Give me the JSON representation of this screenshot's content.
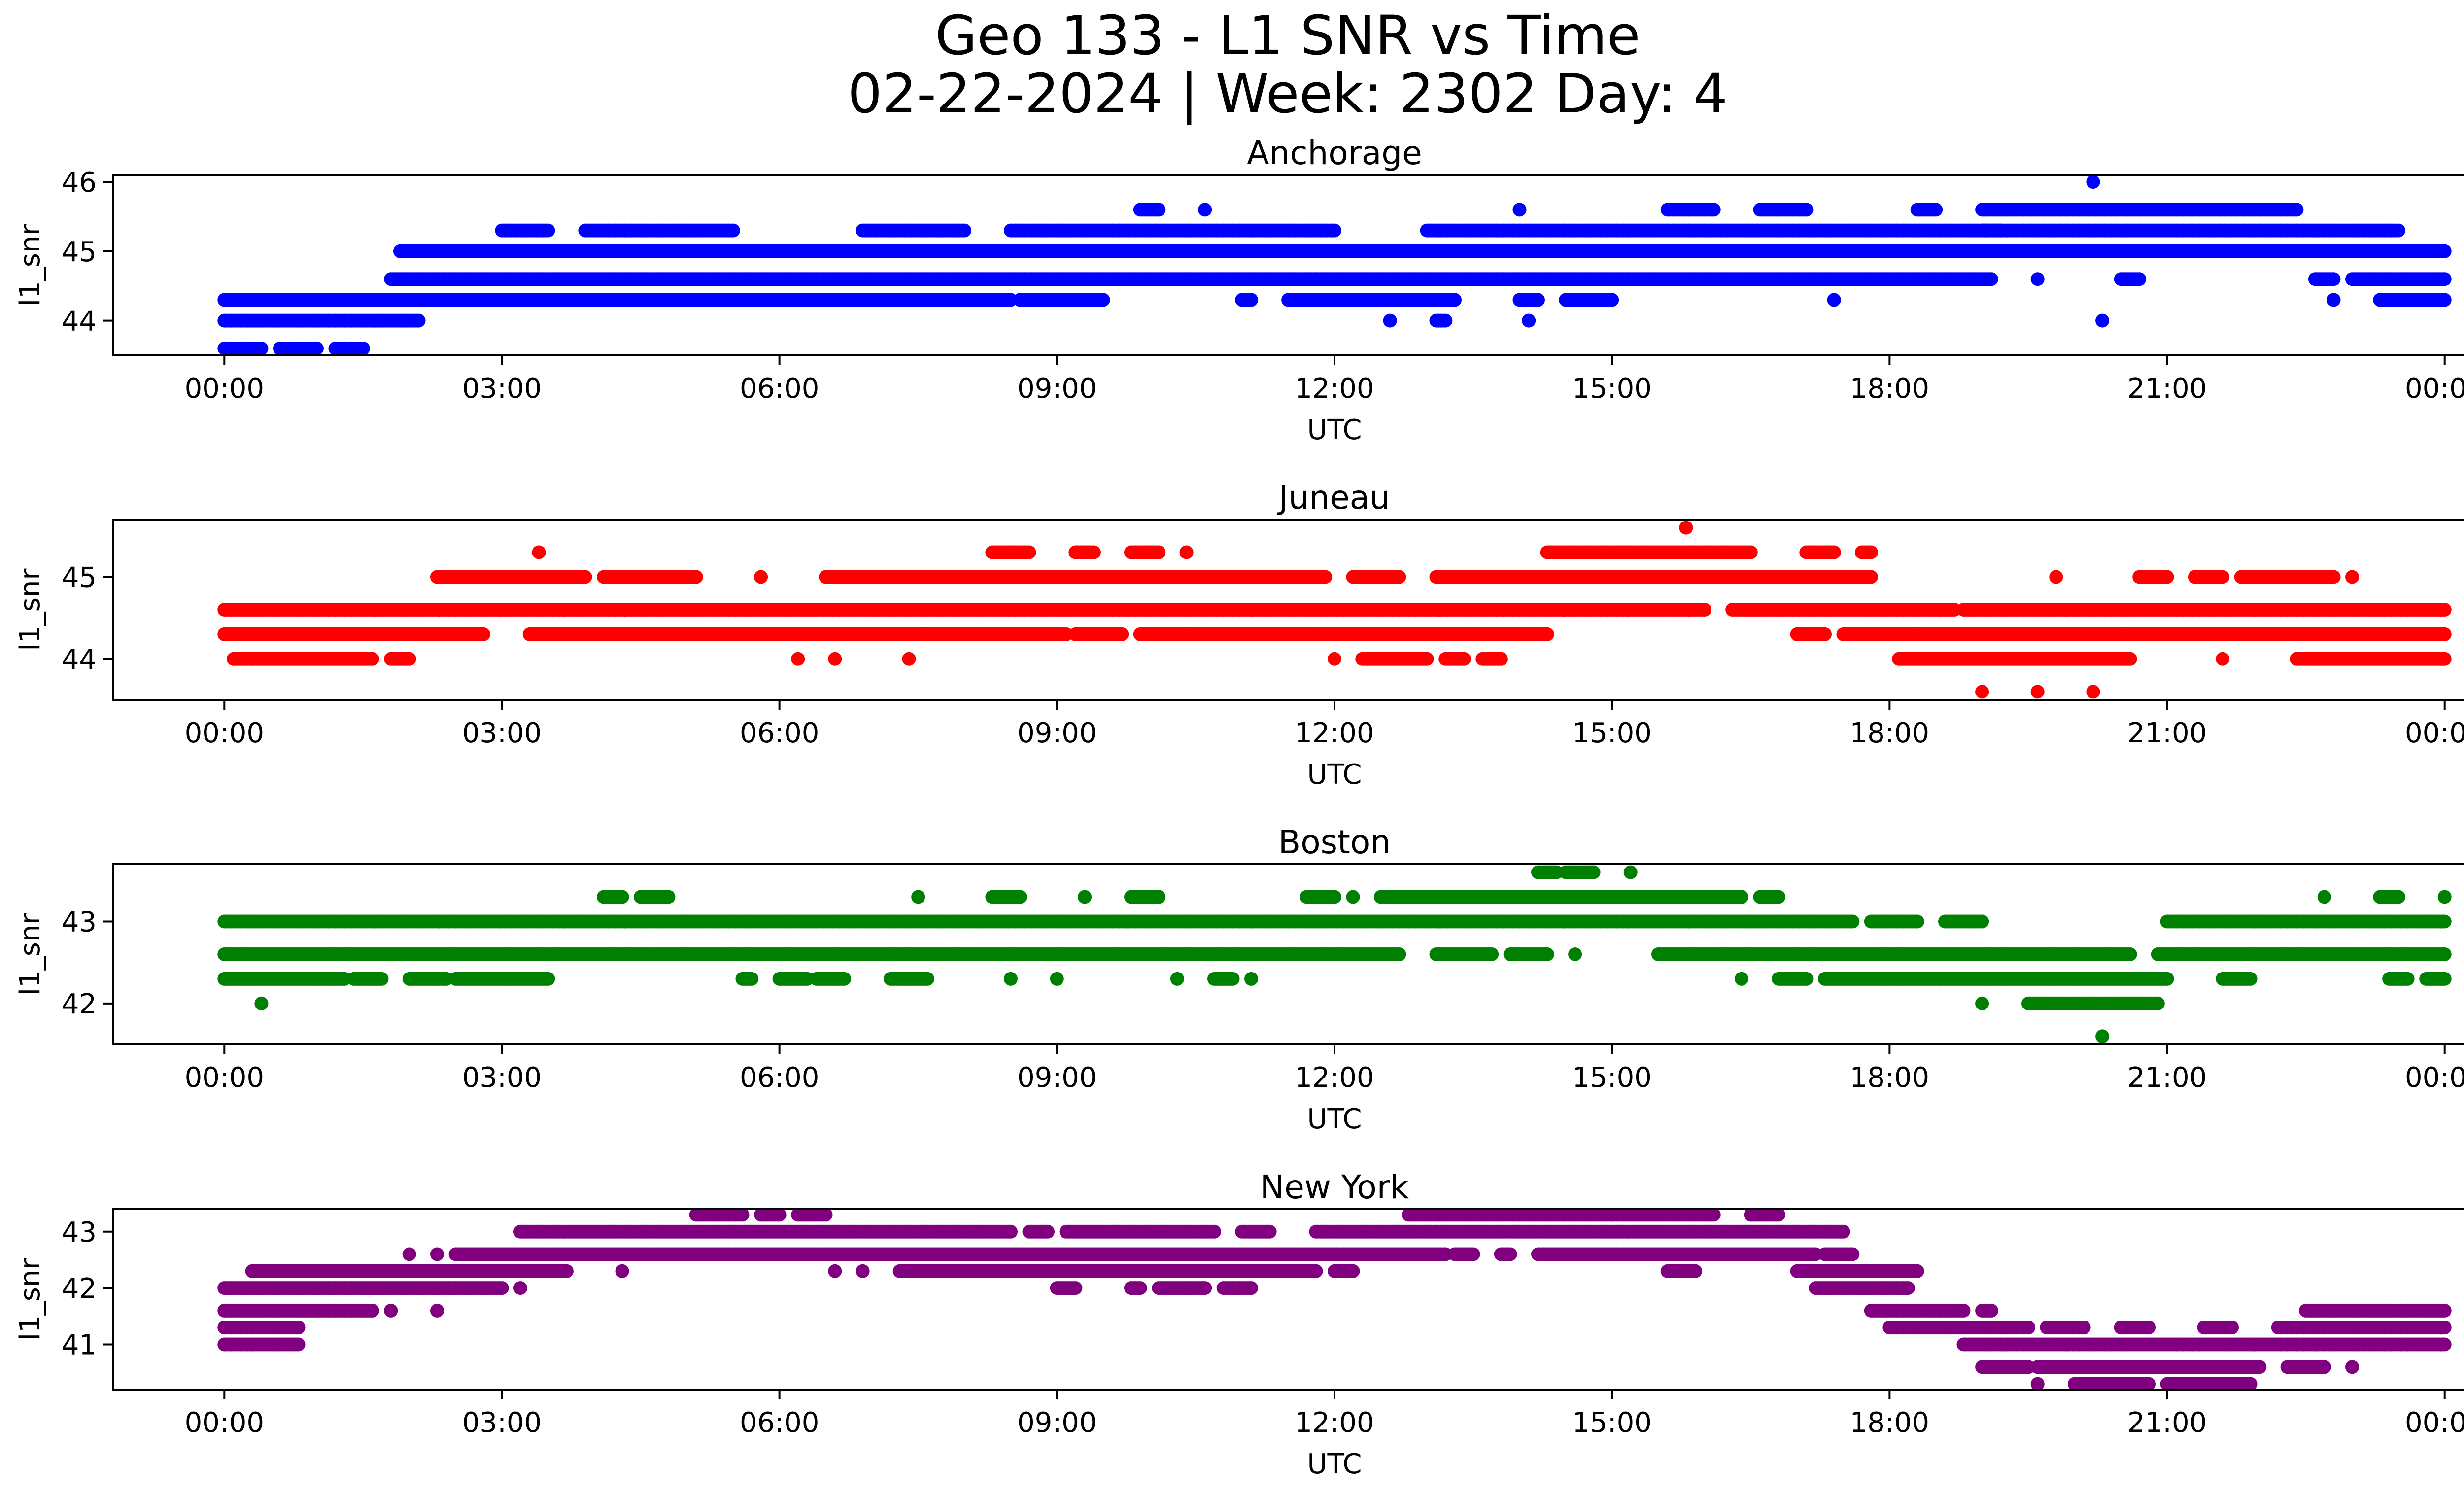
{
  "chart": {
    "title_line1": "Geo 133 - L1 SNR vs Time",
    "title_line2": "02-22-2024 | Week: 2302 Day: 4"
  },
  "chart_data": [
    {
      "type": "scatter",
      "title": "Anchorage",
      "xlabel": "UTC",
      "ylabel": "l1_snr",
      "color": "#0000ff",
      "x_ticks": [
        "00:00",
        "03:00",
        "06:00",
        "09:00",
        "12:00",
        "15:00",
        "18:00",
        "21:00",
        "00:00"
      ],
      "xlim_hours": [
        -1.2,
        25.2
      ],
      "y_ticks": [
        44,
        45,
        46
      ],
      "ylim": [
        43.5,
        46.1
      ],
      "levels": [
        {
          "y": 43.6,
          "spans": [
            [
              0.0,
              0.4
            ],
            [
              0.6,
              1.0
            ],
            [
              1.2,
              1.5
            ]
          ]
        },
        {
          "y": 44.0,
          "spans": [
            [
              0.0,
              2.1
            ],
            [
              12.6,
              12.6
            ],
            [
              13.1,
              13.2
            ],
            [
              14.1,
              14.1
            ],
            [
              20.3,
              20.3
            ]
          ]
        },
        {
          "y": 44.3,
          "spans": [
            [
              0.0,
              2.5
            ],
            [
              2.5,
              4.0
            ],
            [
              4.0,
              8.5
            ],
            [
              8.6,
              9.5
            ],
            [
              11.0,
              11.1
            ],
            [
              11.5,
              13.3
            ],
            [
              14.0,
              14.2
            ],
            [
              14.5,
              15.0
            ],
            [
              17.4,
              17.4
            ],
            [
              22.8,
              22.8
            ],
            [
              23.3,
              24.0
            ]
          ]
        },
        {
          "y": 44.6,
          "spans": [
            [
              1.8,
              19.1
            ],
            [
              19.6,
              19.6
            ],
            [
              20.5,
              20.7
            ],
            [
              22.6,
              22.8
            ],
            [
              23.0,
              24.0
            ]
          ]
        },
        {
          "y": 45.0,
          "spans": [
            [
              1.9,
              24.0
            ]
          ]
        },
        {
          "y": 45.3,
          "spans": [
            [
              3.0,
              3.5
            ],
            [
              3.9,
              5.5
            ],
            [
              6.9,
              8.0
            ],
            [
              8.5,
              12.0
            ],
            [
              13.0,
              19.2
            ],
            [
              19.0,
              23.5
            ]
          ]
        },
        {
          "y": 45.6,
          "spans": [
            [
              9.9,
              10.1
            ],
            [
              10.6,
              10.6
            ],
            [
              14.0,
              14.0
            ],
            [
              15.6,
              16.1
            ],
            [
              16.6,
              17.1
            ],
            [
              18.3,
              18.5
            ],
            [
              19.0,
              22.4
            ]
          ]
        },
        {
          "y": 46.0,
          "spans": [
            [
              20.2,
              20.2
            ]
          ]
        }
      ]
    },
    {
      "type": "scatter",
      "title": "Juneau",
      "xlabel": "UTC",
      "ylabel": "l1_snr",
      "color": "#ff0000",
      "x_ticks": [
        "00:00",
        "03:00",
        "06:00",
        "09:00",
        "12:00",
        "15:00",
        "18:00",
        "21:00",
        "00:00"
      ],
      "xlim_hours": [
        -1.2,
        25.2
      ],
      "y_ticks": [
        44,
        45
      ],
      "ylim": [
        43.5,
        45.7
      ],
      "levels": [
        {
          "y": 43.6,
          "spans": [
            [
              19.0,
              19.0
            ],
            [
              19.6,
              19.6
            ],
            [
              20.2,
              20.2
            ]
          ]
        },
        {
          "y": 44.0,
          "spans": [
            [
              0.1,
              1.6
            ],
            [
              1.8,
              2.0
            ],
            [
              6.2,
              6.2
            ],
            [
              6.6,
              6.6
            ],
            [
              7.4,
              7.4
            ],
            [
              12.0,
              12.0
            ],
            [
              12.3,
              13.0
            ],
            [
              13.2,
              13.4
            ],
            [
              13.6,
              13.8
            ],
            [
              18.1,
              20.6
            ],
            [
              21.6,
              21.6
            ],
            [
              22.4,
              24.0
            ]
          ]
        },
        {
          "y": 44.3,
          "spans": [
            [
              0.0,
              2.8
            ],
            [
              3.3,
              9.1
            ],
            [
              9.2,
              9.7
            ],
            [
              9.9,
              14.3
            ],
            [
              17.0,
              17.3
            ],
            [
              17.5,
              24.0
            ]
          ]
        },
        {
          "y": 44.6,
          "spans": [
            [
              0.0,
              16.0
            ],
            [
              16.3,
              18.7
            ],
            [
              18.8,
              24.0
            ]
          ]
        },
        {
          "y": 45.0,
          "spans": [
            [
              2.3,
              3.9
            ],
            [
              4.1,
              5.1
            ],
            [
              5.8,
              5.8
            ],
            [
              6.5,
              11.9
            ],
            [
              12.2,
              12.7
            ],
            [
              13.1,
              17.8
            ],
            [
              19.8,
              19.8
            ],
            [
              20.7,
              21.0
            ],
            [
              21.3,
              21.6
            ],
            [
              21.8,
              22.8
            ],
            [
              23.0,
              23.0
            ]
          ]
        },
        {
          "y": 45.3,
          "spans": [
            [
              3.4,
              3.4
            ],
            [
              8.3,
              8.7
            ],
            [
              9.2,
              9.4
            ],
            [
              9.8,
              10.1
            ],
            [
              10.4,
              10.4
            ],
            [
              14.3,
              16.5
            ],
            [
              17.1,
              17.4
            ],
            [
              17.7,
              17.8
            ]
          ]
        },
        {
          "y": 45.6,
          "spans": [
            [
              15.8,
              15.8
            ]
          ]
        }
      ]
    },
    {
      "type": "scatter",
      "title": "Boston",
      "xlabel": "UTC",
      "ylabel": "l1_snr",
      "color": "#008000",
      "x_ticks": [
        "00:00",
        "03:00",
        "06:00",
        "09:00",
        "12:00",
        "15:00",
        "18:00",
        "21:00",
        "00:00"
      ],
      "xlim_hours": [
        -1.2,
        25.2
      ],
      "y_ticks": [
        42,
        43
      ],
      "ylim": [
        41.5,
        43.7
      ],
      "levels": [
        {
          "y": 41.6,
          "spans": [
            [
              20.3,
              20.3
            ]
          ]
        },
        {
          "y": 42.0,
          "spans": [
            [
              0.4,
              0.4
            ],
            [
              19.0,
              19.0
            ],
            [
              19.5,
              20.9
            ]
          ]
        },
        {
          "y": 42.3,
          "spans": [
            [
              0.0,
              1.3
            ],
            [
              1.4,
              1.7
            ],
            [
              2.0,
              2.4
            ],
            [
              2.5,
              3.5
            ],
            [
              5.6,
              5.7
            ],
            [
              6.0,
              6.3
            ],
            [
              6.4,
              6.7
            ],
            [
              7.2,
              7.6
            ],
            [
              8.5,
              8.5
            ],
            [
              9.0,
              9.0
            ],
            [
              10.3,
              10.3
            ],
            [
              10.7,
              10.9
            ],
            [
              11.1,
              11.1
            ],
            [
              16.4,
              16.4
            ],
            [
              16.8,
              17.1
            ],
            [
              17.3,
              21.0
            ],
            [
              21.6,
              21.9
            ],
            [
              23.4,
              23.6
            ],
            [
              23.8,
              24.0
            ]
          ]
        },
        {
          "y": 42.6,
          "spans": [
            [
              0.0,
              12.7
            ],
            [
              13.1,
              13.7
            ],
            [
              13.9,
              14.3
            ],
            [
              14.6,
              14.6
            ],
            [
              15.5,
              20.6
            ],
            [
              20.9,
              24.0
            ]
          ]
        },
        {
          "y": 43.0,
          "spans": [
            [
              0.0,
              17.6
            ],
            [
              17.8,
              18.3
            ],
            [
              18.6,
              19.0
            ],
            [
              21.0,
              24.0
            ]
          ]
        },
        {
          "y": 43.3,
          "spans": [
            [
              4.1,
              4.3
            ],
            [
              4.5,
              4.8
            ],
            [
              7.5,
              7.5
            ],
            [
              8.3,
              8.6
            ],
            [
              9.3,
              9.3
            ],
            [
              9.8,
              10.1
            ],
            [
              11.7,
              12.0
            ],
            [
              12.2,
              12.2
            ],
            [
              12.5,
              16.4
            ],
            [
              16.6,
              16.8
            ],
            [
              22.7,
              22.7
            ],
            [
              23.3,
              23.5
            ],
            [
              24.0,
              24.0
            ]
          ]
        },
        {
          "y": 43.6,
          "spans": [
            [
              14.2,
              14.4
            ],
            [
              14.5,
              14.8
            ],
            [
              15.2,
              15.2
            ]
          ]
        }
      ]
    },
    {
      "type": "scatter",
      "title": "New York",
      "xlabel": "UTC",
      "ylabel": "l1_snr",
      "color": "#800080",
      "x_ticks": [
        "00:00",
        "03:00",
        "06:00",
        "09:00",
        "12:00",
        "15:00",
        "18:00",
        "21:00",
        "00:00"
      ],
      "xlim_hours": [
        -1.2,
        25.2
      ],
      "y_ticks": [
        41,
        42,
        43
      ],
      "ylim": [
        40.2,
        43.4
      ],
      "levels": [
        {
          "y": 40.3,
          "spans": [
            [
              19.6,
              19.6
            ],
            [
              20.0,
              20.8
            ],
            [
              21.0,
              21.9
            ]
          ]
        },
        {
          "y": 40.6,
          "spans": [
            [
              19.0,
              19.5
            ],
            [
              19.6,
              22.0
            ],
            [
              22.3,
              22.7
            ],
            [
              23.0,
              23.0
            ]
          ]
        },
        {
          "y": 41.0,
          "spans": [
            [
              0.0,
              0.8
            ],
            [
              18.8,
              24.0
            ]
          ]
        },
        {
          "y": 41.3,
          "spans": [
            [
              0.0,
              0.8
            ],
            [
              18.0,
              19.5
            ],
            [
              19.7,
              20.1
            ],
            [
              20.5,
              20.8
            ],
            [
              21.4,
              21.7
            ],
            [
              22.2,
              24.0
            ]
          ]
        },
        {
          "y": 41.6,
          "spans": [
            [
              0.0,
              1.6
            ],
            [
              1.8,
              1.8
            ],
            [
              2.3,
              2.3
            ],
            [
              17.8,
              18.8
            ],
            [
              19.0,
              19.1
            ],
            [
              22.5,
              24.0
            ]
          ]
        },
        {
          "y": 42.0,
          "spans": [
            [
              0.0,
              3.0
            ],
            [
              3.2,
              3.2
            ],
            [
              9.0,
              9.2
            ],
            [
              9.8,
              9.9
            ],
            [
              10.1,
              10.6
            ],
            [
              10.8,
              11.1
            ],
            [
              17.2,
              18.2
            ]
          ]
        },
        {
          "y": 42.3,
          "spans": [
            [
              0.3,
              3.7
            ],
            [
              4.3,
              4.3
            ],
            [
              6.6,
              6.6
            ],
            [
              6.9,
              6.9
            ],
            [
              7.3,
              11.8
            ],
            [
              12.0,
              12.2
            ],
            [
              15.6,
              15.9
            ],
            [
              17.0,
              17.6
            ],
            [
              17.6,
              18.3
            ]
          ]
        },
        {
          "y": 42.6,
          "spans": [
            [
              2.0,
              2.0
            ],
            [
              2.3,
              2.3
            ],
            [
              2.5,
              12.1
            ],
            [
              12.1,
              13.2
            ],
            [
              13.3,
              13.5
            ],
            [
              13.8,
              13.9
            ],
            [
              14.2,
              17.2
            ],
            [
              17.3,
              17.6
            ]
          ]
        },
        {
          "y": 43.0,
          "spans": [
            [
              3.2,
              8.5
            ],
            [
              8.7,
              8.9
            ],
            [
              9.1,
              10.7
            ],
            [
              11.0,
              11.3
            ],
            [
              11.8,
              17.5
            ]
          ]
        },
        {
          "y": 43.3,
          "spans": [
            [
              5.1,
              5.6
            ],
            [
              5.8,
              6.0
            ],
            [
              6.2,
              6.5
            ],
            [
              12.8,
              15.0
            ],
            [
              15.0,
              16.1
            ],
            [
              16.5,
              16.8
            ]
          ]
        }
      ]
    }
  ]
}
